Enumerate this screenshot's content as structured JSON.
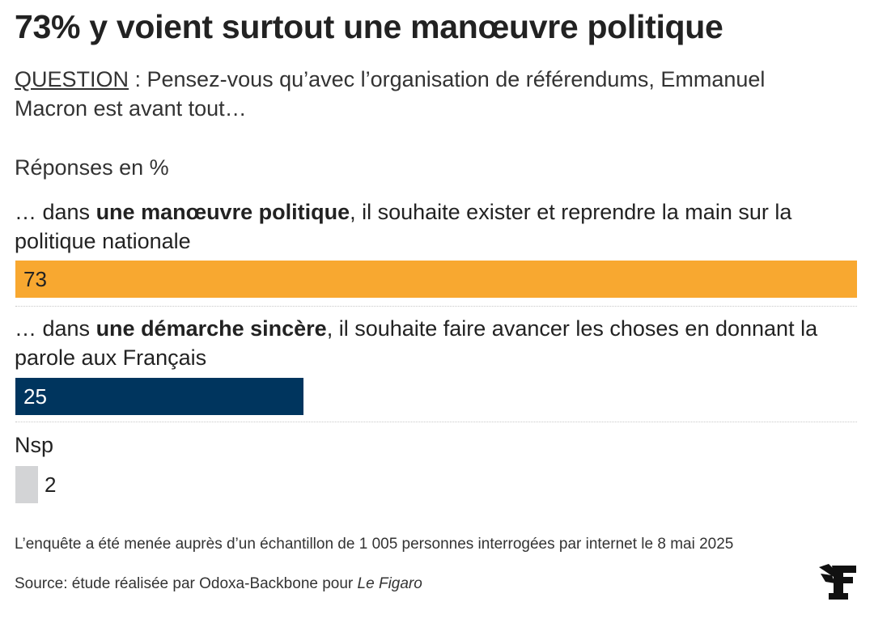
{
  "title": "73% y voient surtout une manœuvre politique",
  "question": {
    "label": "QUESTION",
    "text": " : Pensez-vous qu’avec l’organisation de référendums, Emmanuel Macron est avant tout…"
  },
  "units_label": "Réponses en %",
  "chart_data": {
    "type": "bar",
    "orientation": "horizontal",
    "title": "73% y voient surtout une manœuvre politique",
    "subtitle": "QUESTION : Pensez-vous qu’avec l’organisation de référendums, Emmanuel Macron est avant tout…",
    "units": "Réponses en %",
    "xlim": [
      0,
      73
    ],
    "categories": [
      "… dans une manœuvre politique, il souhaite exister et reprendre la main sur la politique nationale",
      "… dans une démarche sincère, il souhaite faire avancer les choses en donnant la parole aux Français",
      "Nsp"
    ],
    "values": [
      73,
      25,
      2
    ],
    "colors": [
      "#f8a830",
      "#00355e",
      "#d3d4d6"
    ],
    "grid": false,
    "legend": "none"
  },
  "rows": [
    {
      "prefix": "… dans ",
      "bold": "une manœuvre politique",
      "suffix": ", il souhaite exister et reprendre la main sur la politique nationale",
      "value": "73"
    },
    {
      "prefix": "… dans ",
      "bold": "une démarche sincère",
      "suffix": ", il souhaite faire avancer les choses en donnant la parole aux Français",
      "value": "25"
    },
    {
      "prefix": "Nsp",
      "bold": "",
      "suffix": "",
      "value": "2"
    }
  ],
  "footnotes": {
    "method": "L’enquête a été menée auprès d’un échantillon de 1 005 personnes interrogées par internet le 8 mai 2025",
    "source_prefix": "Source: étude réalisée par Odoxa-Backbone pour ",
    "source_publication": "Le Figaro"
  },
  "brand": {
    "logo_icon": "le-figaro-logo"
  }
}
